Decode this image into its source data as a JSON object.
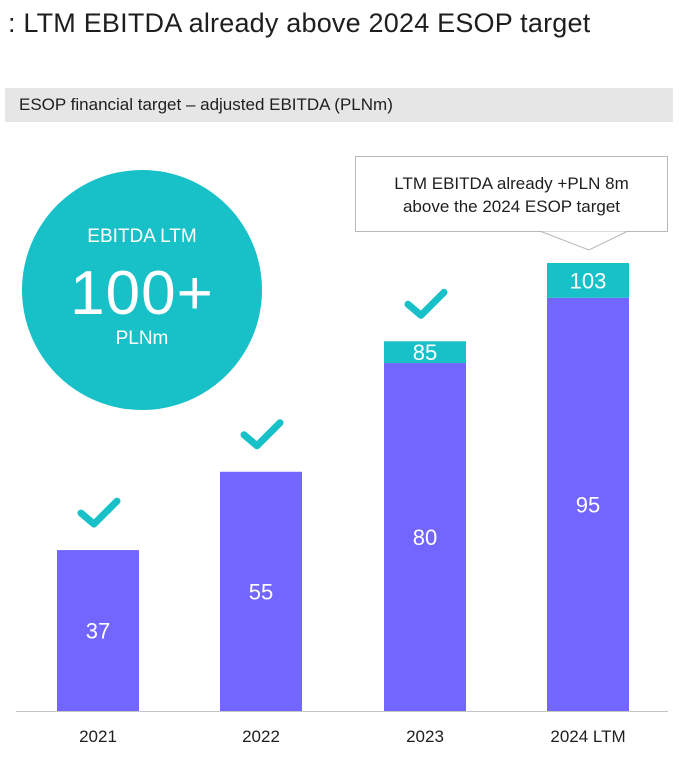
{
  "headline": ": LTM EBITDA already above 2024 ESOP target",
  "colors": {
    "bar": "#7366ff",
    "stack": "#18c0c8",
    "check": "#18c0c8",
    "band": "#e6e6e6",
    "badge": "#18c0c8"
  },
  "badge": {
    "label": "EBITDA LTM",
    "value": "100+",
    "unit": "PLNm"
  },
  "callout": {
    "text": "LTM EBITDA already +PLN 8m\nabove the 2024 ESOP target"
  },
  "chart_data": {
    "type": "bar",
    "title": "ESOP financial target – adjusted EBITDA (PLNm)",
    "categories": [
      "2021",
      "2022",
      "2023",
      "2024 LTM"
    ],
    "series": [
      {
        "values": [
          37,
          55,
          80,
          95
        ]
      },
      {
        "values": [
          null,
          null,
          85,
          103
        ]
      }
    ],
    "data_labels": {
      "base": [
        "37",
        "55",
        "80",
        "95"
      ],
      "top": [
        "",
        "",
        "85",
        "103"
      ]
    },
    "checkmarks": [
      true,
      true,
      true,
      false
    ],
    "ylim": [
      0,
      103
    ],
    "grid": false
  }
}
